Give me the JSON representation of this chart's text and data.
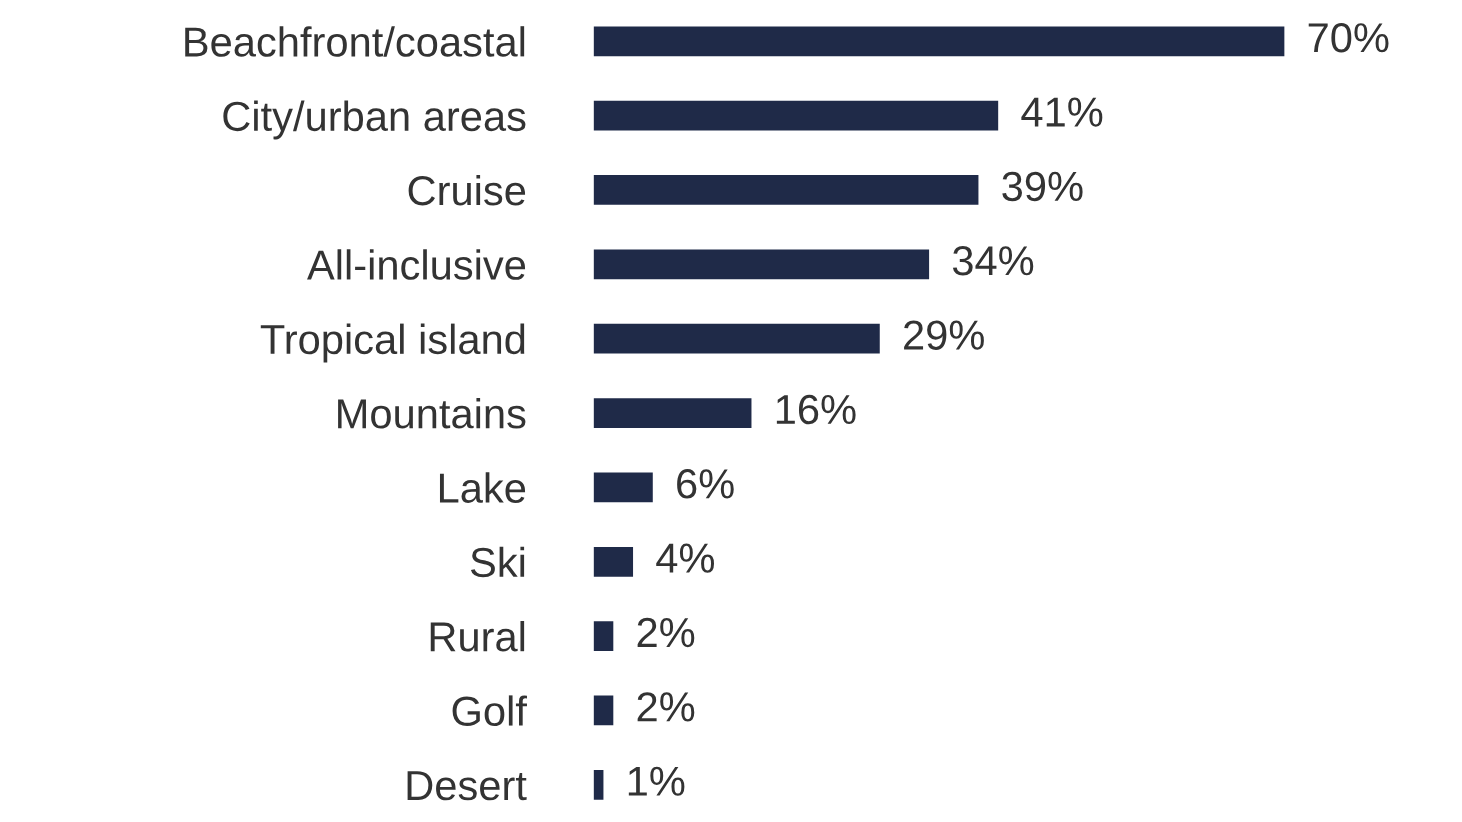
{
  "chart_data": {
    "type": "bar",
    "orientation": "horizontal",
    "categories": [
      "Beachfront/coastal",
      "City/urban areas",
      "Cruise",
      "All-inclusive",
      "Tropical island",
      "Mountains",
      "Lake",
      "Ski",
      "Rural",
      "Golf",
      "Desert"
    ],
    "values": [
      70,
      41,
      39,
      34,
      29,
      16,
      6,
      4,
      2,
      2,
      1
    ],
    "value_labels": [
      "70%",
      "41%",
      "39%",
      "34%",
      "29%",
      "16%",
      "6%",
      "4%",
      "2%",
      "2%",
      "1%"
    ],
    "color": "#1f2a48",
    "grid": false,
    "legend": false,
    "tick_labels": "y"
  }
}
